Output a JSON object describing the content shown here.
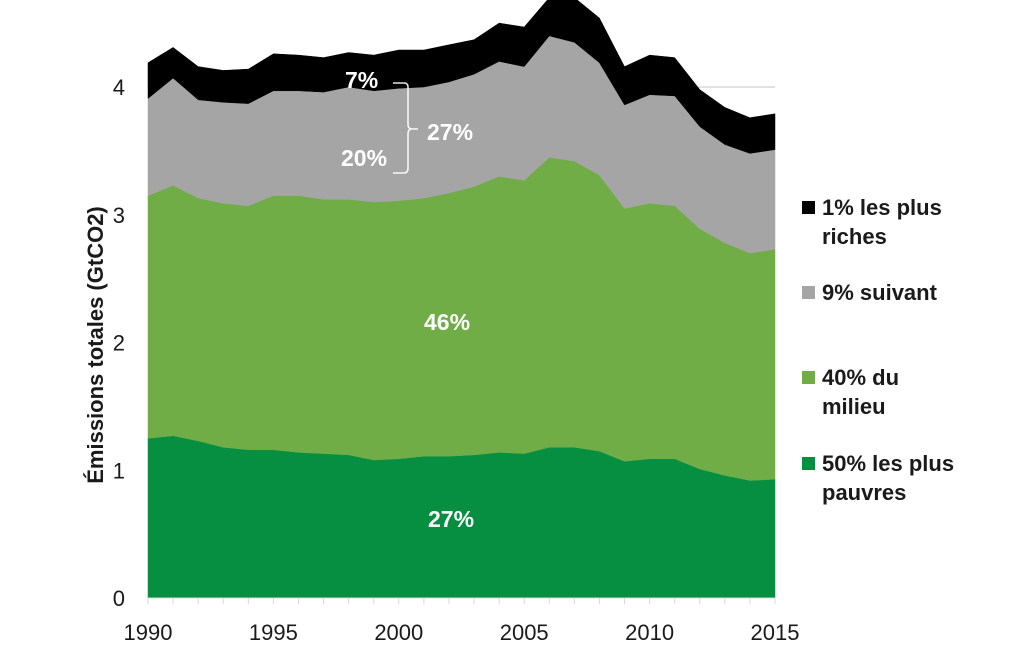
{
  "chart_data": {
    "type": "area",
    "stacked": true,
    "title": "",
    "xlabel": "",
    "ylabel": "Émissions totales (GtCO2)",
    "xlim": [
      1990,
      2015
    ],
    "ylim": [
      0,
      4.5
    ],
    "x": [
      1990,
      1991,
      1992,
      1993,
      1994,
      1995,
      1996,
      1997,
      1998,
      1999,
      2000,
      2001,
      2002,
      2003,
      2004,
      2005,
      2006,
      2007,
      2008,
      2009,
      2010,
      2011,
      2012,
      2013,
      2014,
      2015
    ],
    "x_ticks": [
      "1990",
      "1995",
      "2000",
      "2005",
      "2010",
      "2015"
    ],
    "y_ticks": [
      "0",
      "1",
      "2",
      "3",
      "4"
    ],
    "grid": "horizontal line at 4 only",
    "legend_position": "right",
    "series": [
      {
        "name": "50% les plus pauvres",
        "color": "#078f41",
        "values": [
          1.25,
          1.27,
          1.23,
          1.18,
          1.16,
          1.16,
          1.14,
          1.13,
          1.12,
          1.08,
          1.09,
          1.11,
          1.11,
          1.12,
          1.14,
          1.13,
          1.18,
          1.18,
          1.15,
          1.07,
          1.09,
          1.09,
          1.01,
          0.96,
          0.92,
          0.93
        ]
      },
      {
        "name": "40% du milieu",
        "color": "#70ad47",
        "values": [
          1.9,
          1.96,
          1.9,
          1.91,
          1.91,
          1.99,
          2.01,
          1.99,
          2.0,
          2.02,
          2.02,
          2.02,
          2.06,
          2.1,
          2.16,
          2.14,
          2.27,
          2.24,
          2.16,
          1.98,
          2.0,
          1.98,
          1.88,
          1.82,
          1.78,
          1.8
        ]
      },
      {
        "name": "9% suivant",
        "color": "#a5a5a5",
        "values": [
          0.76,
          0.84,
          0.77,
          0.79,
          0.8,
          0.82,
          0.82,
          0.84,
          0.88,
          0.87,
          0.88,
          0.87,
          0.87,
          0.88,
          0.9,
          0.89,
          0.95,
          0.93,
          0.88,
          0.81,
          0.85,
          0.86,
          0.8,
          0.77,
          0.78,
          0.78
        ]
      },
      {
        "name": "1% les plus riches",
        "color": "#000000",
        "values": [
          0.28,
          0.24,
          0.26,
          0.25,
          0.27,
          0.29,
          0.28,
          0.27,
          0.27,
          0.28,
          0.3,
          0.29,
          0.29,
          0.27,
          0.3,
          0.31,
          0.3,
          0.35,
          0.35,
          0.3,
          0.31,
          0.3,
          0.29,
          0.29,
          0.28,
          0.28
        ]
      }
    ],
    "annotations": {
      "top1_share": "7%",
      "next9_share": "20%",
      "top10_share": "27%",
      "middle40_share": "46%",
      "bottom50_share": "27%"
    },
    "legend": [
      {
        "line1": "1% les plus",
        "line2": "riches",
        "color": "#000000"
      },
      {
        "line1": "9% suivant",
        "line2": "",
        "color": "#a5a5a5"
      },
      {
        "line1": "40% du",
        "line2": "milieu",
        "color": "#70ad47"
      },
      {
        "line1": "50% les plus",
        "line2": "pauvres",
        "color": "#078f41"
      }
    ]
  }
}
